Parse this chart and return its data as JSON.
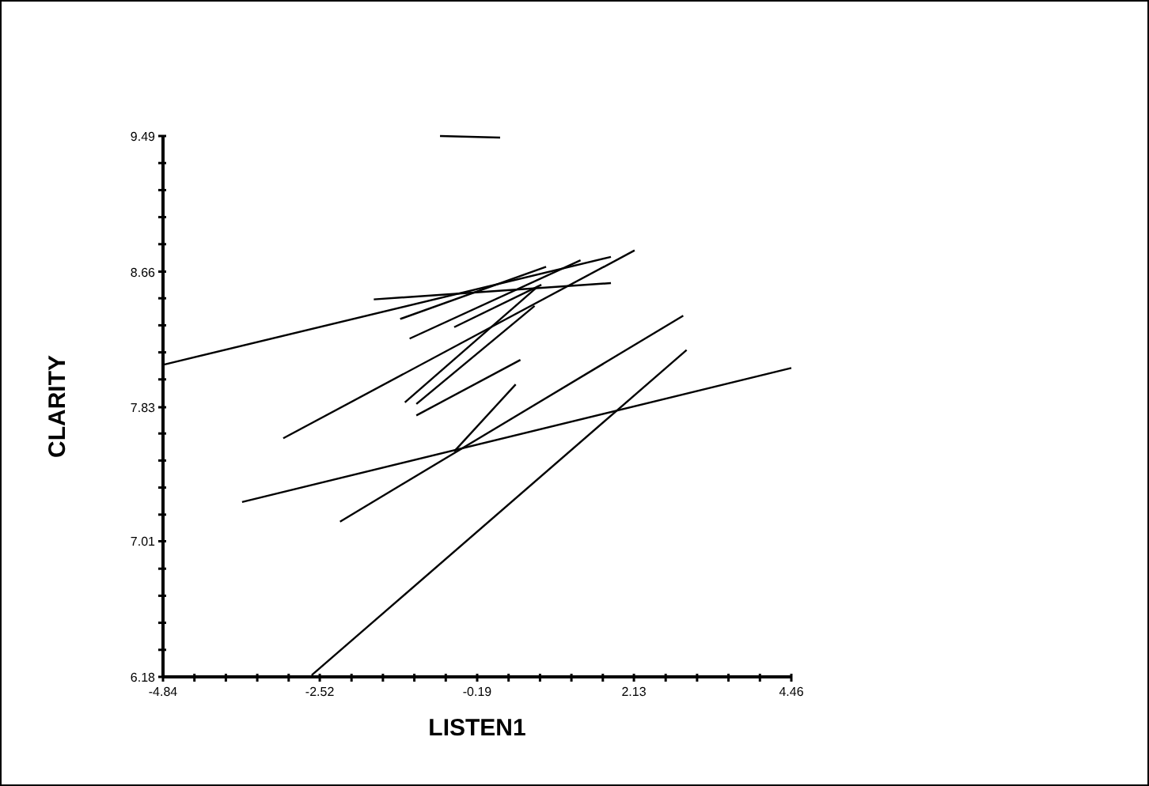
{
  "chart_data": {
    "type": "line",
    "xlabel": "LISTEN1",
    "ylabel": "CLARITY",
    "marker": "none",
    "line_style": "solid",
    "xlim": [
      -4.84,
      4.46
    ],
    "ylim": [
      6.18,
      9.49
    ],
    "xticks": [
      -4.84,
      {
        "value": -4.375,
        "label": null
      },
      {
        "value": -3.91,
        "label": null
      },
      {
        "value": -3.445,
        "label": null
      },
      {
        "value": -2.98,
        "label": null
      },
      -2.52,
      {
        "value": -2.05,
        "label": null
      },
      {
        "value": -1.585,
        "label": null
      },
      {
        "value": -1.12,
        "label": null
      },
      {
        "value": -0.655,
        "label": null
      },
      -0.19,
      {
        "value": 0.275,
        "label": null
      },
      {
        "value": 0.74,
        "label": null
      },
      {
        "value": 1.205,
        "label": null
      },
      {
        "value": 1.67,
        "label": null
      },
      2.13,
      {
        "value": 2.6,
        "label": null
      },
      {
        "value": 3.065,
        "label": null
      },
      {
        "value": 3.53,
        "label": null
      },
      {
        "value": 3.995,
        "label": null
      },
      4.46
    ],
    "yticks": [
      6.18,
      {
        "value": 6.3455,
        "label": null
      },
      {
        "value": 6.511,
        "label": null
      },
      {
        "value": 6.6765,
        "label": null
      },
      {
        "value": 6.842,
        "label": null
      },
      7.01,
      {
        "value": 7.173,
        "label": null
      },
      {
        "value": 7.3385,
        "label": null
      },
      {
        "value": 7.504,
        "label": null
      },
      {
        "value": 7.6695,
        "label": null
      },
      7.83,
      {
        "value": 8.0005,
        "label": null
      },
      {
        "value": 8.166,
        "label": null
      },
      {
        "value": 8.3315,
        "label": null
      },
      {
        "value": 8.497,
        "label": null
      },
      8.66,
      {
        "value": 8.828,
        "label": null
      },
      {
        "value": 8.9935,
        "label": null
      },
      {
        "value": 9.159,
        "label": null
      },
      {
        "value": 9.3245,
        "label": null
      },
      9.49
    ],
    "series": [
      {
        "color": "#000000",
        "x": [
          -0.74,
          0.15
        ],
        "values": [
          9.49,
          9.48
        ]
      },
      {
        "color": "#000000",
        "x": [
          -4.84,
          1.79
        ],
        "values": [
          8.09,
          8.75
        ]
      },
      {
        "color": "#000000",
        "x": [
          -1.72,
          1.79
        ],
        "values": [
          8.49,
          8.59
        ]
      },
      {
        "color": "#000000",
        "x": [
          -1.33,
          0.83
        ],
        "values": [
          8.37,
          8.69
        ]
      },
      {
        "color": "#000000",
        "x": [
          -1.19,
          1.34
        ],
        "values": [
          8.25,
          8.73
        ]
      },
      {
        "color": "#000000",
        "x": [
          -0.53,
          0.76
        ],
        "values": [
          8.32,
          8.58
        ]
      },
      {
        "color": "#000000",
        "x": [
          -1.26,
          0.71
        ],
        "values": [
          7.86,
          8.57
        ]
      },
      {
        "color": "#000000",
        "x": [
          -1.09,
          0.66
        ],
        "values": [
          7.85,
          8.45
        ]
      },
      {
        "color": "#000000",
        "x": [
          -1.09,
          0.45
        ],
        "values": [
          7.78,
          8.12
        ]
      },
      {
        "color": "#000000",
        "x": [
          -3.06,
          2.14
        ],
        "values": [
          7.64,
          8.79
        ]
      },
      {
        "color": "#000000",
        "x": [
          -0.53,
          0.38
        ],
        "values": [
          7.56,
          7.97
        ]
      },
      {
        "color": "#000000",
        "x": [
          -3.67,
          4.46
        ],
        "values": [
          7.25,
          8.07
        ]
      },
      {
        "color": "#000000",
        "x": [
          -2.22,
          2.86
        ],
        "values": [
          7.13,
          8.39
        ]
      },
      {
        "color": "#000000",
        "x": [
          -2.64,
          2.91
        ],
        "values": [
          6.19,
          8.18
        ]
      }
    ]
  }
}
